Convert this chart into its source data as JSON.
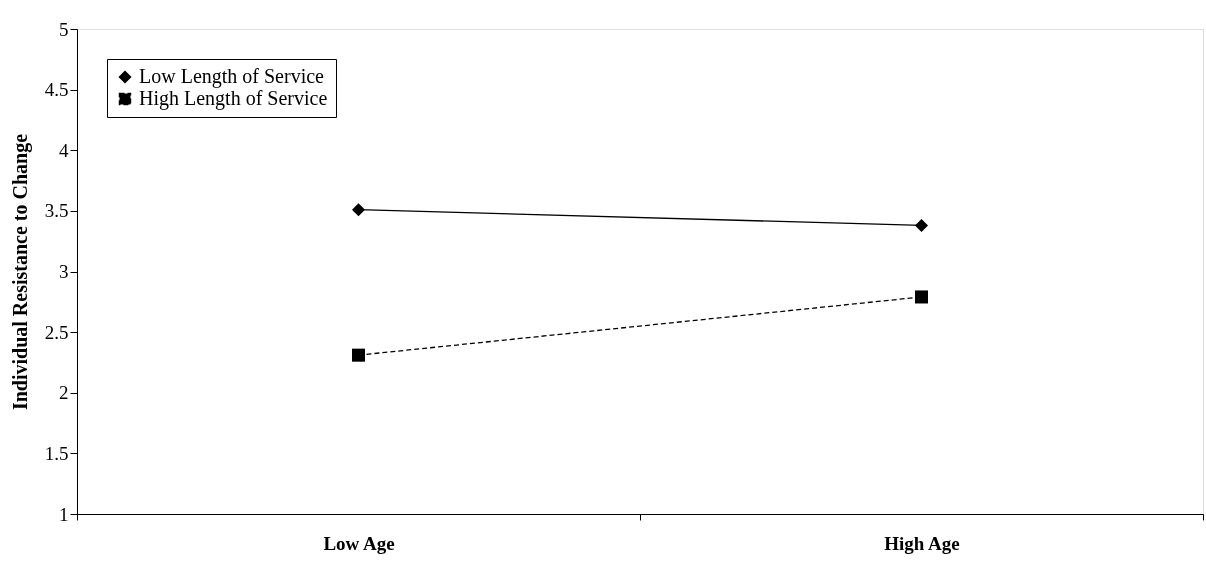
{
  "chart_data": {
    "type": "line",
    "ylabel": "Individual Resistance to Change",
    "categories": [
      "Low Age",
      "High Age"
    ],
    "series": [
      {
        "name": "Low Length of Service",
        "color": "#000000",
        "values": [
          3.51,
          3.38
        ],
        "marker": "diamond",
        "line_style": "solid"
      },
      {
        "name": "High Length of Service",
        "color": "#000000",
        "values": [
          2.31,
          2.79
        ],
        "marker": "square",
        "line_style": "dashed"
      }
    ],
    "ylim": [
      1,
      5
    ],
    "yticks": [
      1,
      1.5,
      2,
      2.5,
      3,
      3.5,
      4,
      4.5,
      5
    ],
    "grid": false,
    "legend": "top left"
  }
}
